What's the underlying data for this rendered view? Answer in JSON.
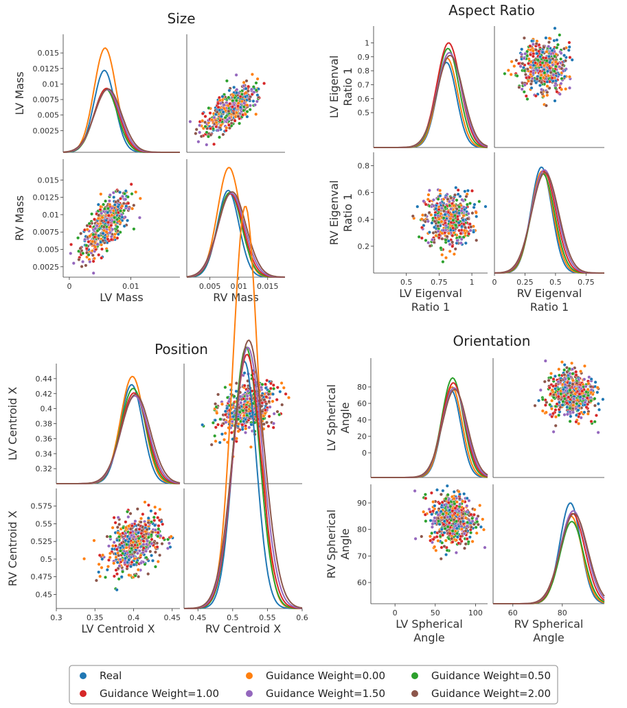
{
  "colors": {
    "Real": "#1f77b4",
    "Guidance Weight=0.00": "#ff7f0e",
    "Guidance Weight=0.50": "#2ca02c",
    "Guidance Weight=1.00": "#d62728",
    "Guidance Weight=1.50": "#9467bd",
    "Guidance Weight=2.00": "#8c564b"
  },
  "legend": {
    "entries": [
      "Real",
      "Guidance Weight=0.00",
      "Guidance Weight=0.50",
      "Guidance Weight=1.00",
      "Guidance Weight=1.50",
      "Guidance Weight=2.00"
    ]
  },
  "chart_data": [
    {
      "type": "pairplot",
      "title": "Size",
      "variables": [
        "LV Mass",
        "RV Mass"
      ],
      "axis_labels": [
        "LV Mass",
        "RV Mass"
      ],
      "ranges": [
        [
          -0.001,
          0.018
        ],
        [
          0.001,
          0.018
        ]
      ],
      "ticks": [
        {
          "diag": [
            "0",
            "0.01"
          ],
          "y": [
            "0.0025",
            "0.005",
            "0.0075",
            "0.01",
            "0.0125",
            "0.015"
          ]
        },
        {
          "diag": [
            "0.005",
            "0.01",
            "0.015"
          ],
          "y": [
            "0.0025",
            "0.005",
            "0.0075",
            "0.01",
            "0.0125",
            "0.015"
          ]
        }
      ],
      "tick_values": [
        {
          "diag": [
            0,
            0.01
          ],
          "y": [
            0.0025,
            0.005,
            0.0075,
            0.01,
            0.0125,
            0.015
          ]
        },
        {
          "diag": [
            0.005,
            0.01,
            0.015
          ],
          "y": [
            0.0025,
            0.005,
            0.0075,
            0.01,
            0.0125,
            0.015
          ]
        }
      ],
      "kde": [
        {
          "mean": 0.006,
          "sd": 0.002,
          "peak": 0.0122
        },
        {
          "mean": 0.0085,
          "sd": 0.0022,
          "peak": 0.0136
        }
      ],
      "kde_peaks": {
        "LV Mass": {
          "Real": 0.0122,
          "Guidance Weight=0.00": 0.0158,
          "Guidance Weight=0.50": 0.0092,
          "Guidance Weight=1.00": 0.0093,
          "Guidance Weight=1.50": 0.0091,
          "Guidance Weight=2.00": 0.0092
        },
        "RV Mass": {
          "Real": 0.0135,
          "Guidance Weight=0.00": 0.0168,
          "Guidance Weight=0.50": 0.0132,
          "Guidance Weight=1.00": 0.013,
          "Guidance Weight=1.50": 0.0131,
          "Guidance Weight=2.00": 0.0133
        }
      },
      "corr": 0.7
    },
    {
      "type": "pairplot",
      "title": "Aspect Ratio",
      "variables": [
        "LV Eigenval Ratio 1",
        "RV Eigenval Ratio 1"
      ],
      "axis_labels": [
        [
          "LV Eigenval",
          "Ratio 1"
        ],
        [
          "RV Eigenval",
          "Ratio 1"
        ]
      ],
      "ranges": [
        [
          0.25,
          1.12
        ],
        [
          0.0,
          0.9
        ]
      ],
      "ticks": [
        {
          "diag": [
            "0.5",
            "0.75",
            "1"
          ],
          "y": [
            "0.5",
            "0.6",
            "0.7",
            "0.8",
            "0.9",
            "1"
          ]
        },
        {
          "diag": [
            "0",
            "0.25",
            "0.5",
            "0.75"
          ],
          "y": [
            "0.2",
            "0.4",
            "0.6",
            "0.8"
          ]
        }
      ],
      "tick_values": [
        {
          "diag": [
            0.5,
            0.75,
            1.0
          ],
          "y": [
            0.5,
            0.6,
            0.7,
            0.8,
            0.9,
            1.0
          ]
        },
        {
          "diag": [
            0.0,
            0.25,
            0.5,
            0.75
          ],
          "y": [
            0.2,
            0.4,
            0.6,
            0.8
          ]
        }
      ],
      "kde": [
        {
          "mean": 0.82,
          "sd": 0.09,
          "peak": 0.93
        },
        {
          "mean": 0.4,
          "sd": 0.1,
          "peak": 0.78
        }
      ],
      "kde_peaks": {
        "LV Eigenval Ratio 1": {
          "Real": 0.86,
          "Guidance Weight=0.00": 0.89,
          "Guidance Weight=0.50": 0.96,
          "Guidance Weight=1.00": 1.0,
          "Guidance Weight=1.50": 0.93,
          "Guidance Weight=2.00": 0.91
        },
        "RV Eigenval Ratio 1": {
          "Real": 0.79,
          "Guidance Weight=0.00": 0.76,
          "Guidance Weight=0.50": 0.74,
          "Guidance Weight=1.00": 0.76,
          "Guidance Weight=1.50": 0.77,
          "Guidance Weight=2.00": 0.75
        }
      },
      "corr": 0.05
    },
    {
      "type": "pairplot",
      "title": "Position",
      "variables": [
        "LV Centroid X",
        "RV Centroid X"
      ],
      "axis_labels": [
        "LV Centroid X",
        "RV Centroid X"
      ],
      "ranges": [
        [
          0.3,
          0.46
        ],
        [
          0.43,
          0.6
        ]
      ],
      "ticks": [
        {
          "diag": [
            "0.3",
            "0.35",
            "0.4",
            "0.45"
          ],
          "y": [
            "0.32",
            "0.34",
            "0.36",
            "0.38",
            "0.4",
            "0.42",
            "0.44"
          ]
        },
        {
          "diag": [
            "0.45",
            "0.5",
            "0.55",
            "0.6"
          ],
          "y": [
            "0.45",
            "0.475",
            "0.5",
            "0.525",
            "0.55",
            "0.575"
          ]
        }
      ],
      "tick_values": [
        {
          "diag": [
            0.3,
            0.35,
            0.4,
            0.45
          ],
          "y": [
            0.32,
            0.34,
            0.36,
            0.38,
            0.4,
            0.42,
            0.44
          ]
        },
        {
          "diag": [
            0.45,
            0.5,
            0.55,
            0.6
          ],
          "y": [
            0.45,
            0.475,
            0.5,
            0.525,
            0.55,
            0.575
          ]
        }
      ],
      "kde": [
        {
          "mean": 0.4,
          "sd": 0.017,
          "peak": 0.43
        },
        {
          "mean": 0.52,
          "sd": 0.02,
          "peak": 0.8
        }
      ],
      "kde_peaks": {
        "LV Centroid X": {
          "Real": 0.432,
          "Guidance Weight=0.00": 0.443,
          "Guidance Weight=0.50": 0.427,
          "Guidance Weight=1.00": 0.421,
          "Guidance Weight=1.50": 0.417,
          "Guidance Weight=2.00": 0.419
        },
        "RV Centroid X": {
          "Real": 0.78,
          "Guidance Weight=0.00": 1.0,
          "Guidance Weight=0.50": 0.8,
          "Guidance Weight=1.00": 0.79,
          "Guidance Weight=1.50": 0.8,
          "Guidance Weight=2.00": 0.81
        }
      },
      "corr": 0.3
    },
    {
      "type": "pairplot",
      "title": "Orientation",
      "variables": [
        "LV Spherical Angle",
        "RV Spherical Angle"
      ],
      "axis_labels": [
        [
          "LV Spherical",
          "Angle"
        ],
        [
          "RV Spherical",
          "Angle"
        ]
      ],
      "ranges": [
        [
          -30,
          115
        ],
        [
          52,
          97
        ]
      ],
      "ticks": [
        {
          "diag": [
            "0",
            "50",
            "100"
          ],
          "y": [
            "0",
            "20",
            "40",
            "60",
            "80"
          ]
        },
        {
          "diag": [
            "60",
            "80"
          ],
          "y": [
            "60",
            "70",
            "80",
            "90"
          ]
        }
      ],
      "tick_values": [
        {
          "diag": [
            0,
            50,
            100
          ],
          "y": [
            0,
            20,
            40,
            60,
            80
          ]
        },
        {
          "diag": [
            60,
            80
          ],
          "y": [
            60,
            70,
            80,
            90
          ]
        }
      ],
      "kde": [
        {
          "mean": 72,
          "sd": 14,
          "peak": 80
        },
        {
          "mean": 84,
          "sd": 5,
          "peak": 87
        }
      ],
      "kde_peaks": {
        "LV Spherical Angle": {
          "Real": 76,
          "Guidance Weight=0.00": 80,
          "Guidance Weight=0.50": 91,
          "Guidance Weight=1.00": 85,
          "Guidance Weight=1.50": 79,
          "Guidance Weight=2.00": 77
        },
        "RV Spherical Angle": {
          "Real": 90,
          "Guidance Weight=0.00": 85,
          "Guidance Weight=0.50": 83,
          "Guidance Weight=1.00": 86,
          "Guidance Weight=1.50": 87,
          "Guidance Weight=2.00": 86
        }
      },
      "corr": 0.0
    }
  ]
}
